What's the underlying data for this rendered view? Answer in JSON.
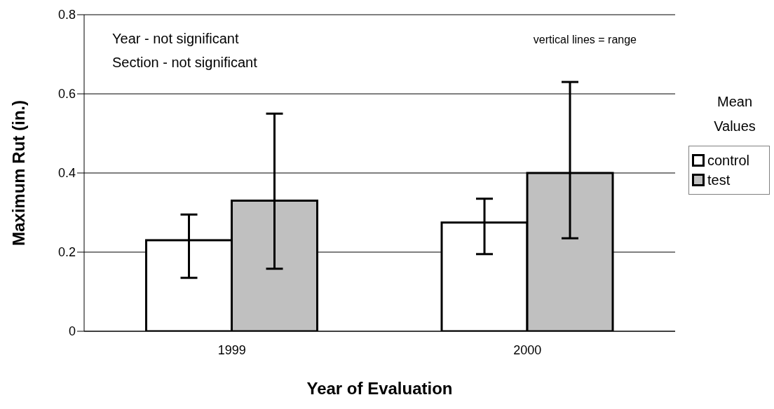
{
  "chart_data": {
    "type": "bar",
    "xlabel": "Year of Evaluation",
    "ylabel": "Maximum Rut (in.)",
    "legend_title": "Mean Values",
    "categories": [
      "1999",
      "2000"
    ],
    "series": [
      {
        "name": "control",
        "color": "#ffffff",
        "values": [
          0.23,
          0.275
        ],
        "errors": [
          [
            0.135,
            0.295
          ],
          [
            0.195,
            0.335
          ]
        ]
      },
      {
        "name": "test",
        "color": "#c0c0c0",
        "values": [
          0.33,
          0.4
        ],
        "errors": [
          [
            0.158,
            0.55
          ],
          [
            0.235,
            0.63
          ]
        ]
      }
    ],
    "ylim": [
      0,
      0.8
    ],
    "yticks": [
      0,
      0.2,
      0.4,
      0.6,
      0.8
    ],
    "grid": "y",
    "legend": "right",
    "annotations": [
      "Year - not significant",
      "Section - not significant",
      "vertical lines = range"
    ]
  }
}
